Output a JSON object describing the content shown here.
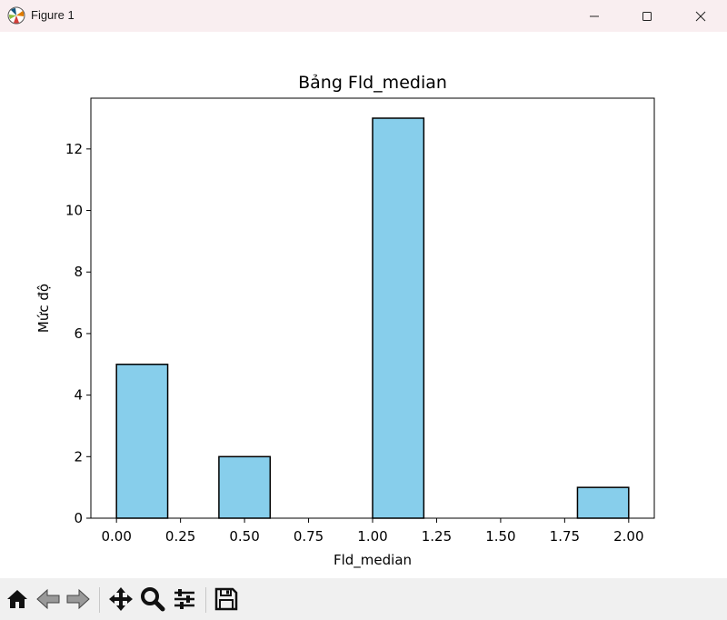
{
  "window": {
    "title": "Figure 1",
    "icons": [
      "matplotlib-logo-icon",
      "minimize-icon",
      "maximize-icon",
      "close-icon"
    ]
  },
  "toolbar": {
    "tools": [
      "home-icon",
      "back-arrow-icon",
      "forward-arrow-icon",
      "pan-move-icon",
      "zoom-magnifier-icon",
      "configure-subplots-icon",
      "save-floppy-icon"
    ]
  },
  "chart_data": {
    "type": "bar",
    "title": "Bảng Fld_median",
    "xlabel": "Fld_median",
    "ylabel": "Mức độ",
    "bins": [
      {
        "start": 0.0,
        "end": 0.2,
        "count": 5
      },
      {
        "start": 0.2,
        "end": 0.4,
        "count": 0
      },
      {
        "start": 0.4,
        "end": 0.6,
        "count": 2
      },
      {
        "start": 0.6,
        "end": 0.8,
        "count": 0
      },
      {
        "start": 0.8,
        "end": 1.0,
        "count": 0
      },
      {
        "start": 1.0,
        "end": 1.2,
        "count": 13
      },
      {
        "start": 1.2,
        "end": 1.4,
        "count": 0
      },
      {
        "start": 1.4,
        "end": 1.6,
        "count": 0
      },
      {
        "start": 1.6,
        "end": 1.8,
        "count": 0
      },
      {
        "start": 1.8,
        "end": 2.0,
        "count": 1
      }
    ],
    "xlim": [
      -0.1,
      2.1
    ],
    "ylim": [
      0,
      13.65
    ],
    "xticks": [
      0.0,
      0.25,
      0.5,
      0.75,
      1.0,
      1.25,
      1.5,
      1.75,
      2.0
    ],
    "xtick_labels": [
      "0.00",
      "0.25",
      "0.50",
      "0.75",
      "1.00",
      "1.25",
      "1.50",
      "1.75",
      "2.00"
    ],
    "yticks": [
      0,
      2,
      4,
      6,
      8,
      10,
      12
    ],
    "ytick_labels": [
      "0",
      "2",
      "4",
      "6",
      "8",
      "10",
      "12"
    ],
    "bar_color": "#87ceeb",
    "edge_color": "#000000",
    "grid": false,
    "legend": false
  }
}
